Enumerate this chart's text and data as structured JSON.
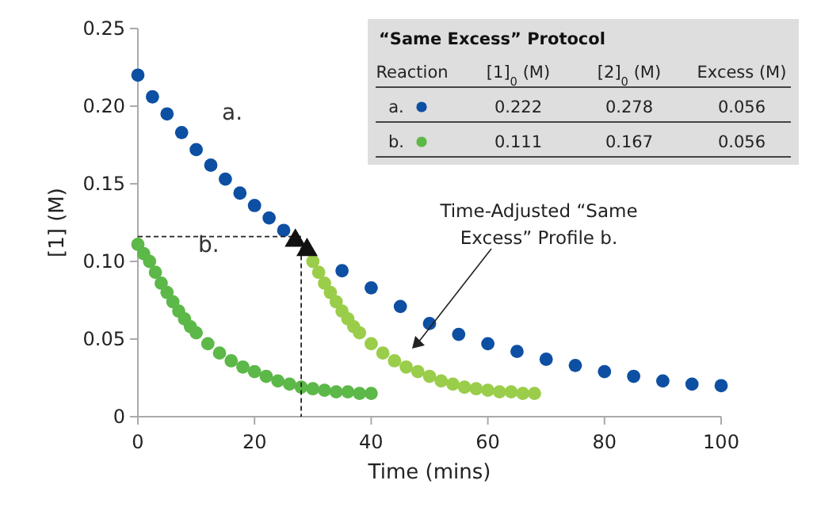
{
  "chart_data": {
    "type": "scatter",
    "xlabel": "Time (mins)",
    "ylabel": "[1] (M)",
    "xlim": [
      0,
      100
    ],
    "ylim": [
      0,
      0.25
    ],
    "xticks": [
      0,
      20,
      40,
      60,
      80,
      100
    ],
    "yticks": [
      {
        "value": 0,
        "label": "0"
      },
      {
        "value": 0.05,
        "label": "0.05"
      },
      {
        "value": 0.1,
        "label": "0.10"
      },
      {
        "value": 0.15,
        "label": "0.15"
      },
      {
        "value": 0.2,
        "label": "0.20"
      },
      {
        "value": 0.25,
        "label": "0.25"
      }
    ],
    "grid": false,
    "marker": "circle",
    "series": [
      {
        "name": "a.",
        "color": "#0d4fa3",
        "x": [
          0,
          2.5,
          5,
          7.5,
          10,
          12.5,
          15,
          17.5,
          20,
          22.5,
          25,
          35,
          40,
          45,
          50,
          55,
          60,
          65,
          70,
          75,
          80,
          85,
          90,
          95,
          100
        ],
        "values": [
          0.22,
          0.206,
          0.195,
          0.183,
          0.172,
          0.162,
          0.153,
          0.144,
          0.136,
          0.128,
          0.12,
          0.094,
          0.083,
          0.071,
          0.06,
          0.053,
          0.047,
          0.042,
          0.037,
          0.033,
          0.029,
          0.026,
          0.023,
          0.021,
          0.02
        ]
      },
      {
        "name": "b.",
        "color": "#5cb848",
        "x": [
          0,
          1,
          2,
          3,
          4,
          5,
          6,
          7,
          8,
          9,
          10,
          12,
          14,
          16,
          18,
          20,
          22,
          24,
          26,
          28,
          30,
          32,
          34,
          36,
          38,
          40
        ],
        "values": [
          0.111,
          0.105,
          0.1,
          0.093,
          0.086,
          0.08,
          0.074,
          0.068,
          0.063,
          0.058,
          0.054,
          0.047,
          0.041,
          0.036,
          0.032,
          0.029,
          0.026,
          0.023,
          0.021,
          0.019,
          0.018,
          0.017,
          0.016,
          0.016,
          0.015,
          0.015
        ]
      },
      {
        "color": "#9acd4a",
        "x": [
          30,
          31,
          32,
          33,
          34,
          35,
          36,
          37,
          38,
          40,
          42,
          44,
          46,
          48,
          50,
          52,
          54,
          56,
          58,
          60,
          62,
          64,
          66,
          68
        ],
        "values": [
          0.1,
          0.093,
          0.086,
          0.08,
          0.074,
          0.068,
          0.063,
          0.058,
          0.054,
          0.047,
          0.041,
          0.036,
          0.032,
          0.029,
          0.026,
          0.023,
          0.021,
          0.019,
          0.018,
          0.017,
          0.016,
          0.016,
          0.015,
          0.015
        ]
      },
      {
        "type": "line",
        "color": "#222222",
        "line_style": "dashed",
        "marker": "none",
        "x": [
          0,
          28,
          28
        ],
        "values": [
          0.116,
          0.116,
          0
        ]
      },
      {
        "color": "#111111",
        "marker": "triangle",
        "x": [
          27,
          29
        ],
        "values": [
          0.114,
          0.108
        ]
      }
    ],
    "annotations": [
      "“Same Excess” Protocol",
      "Reaction",
      "[1]$_{0}$ (M)",
      "[2]$_{0}$ (M)",
      "Excess (M)",
      "a.",
      "0.222",
      "0.278",
      "0.056",
      "b.",
      "0.111",
      "0.167",
      "0.056",
      "Time-Adjusted “Same Excess” Profile b."
    ]
  }
}
